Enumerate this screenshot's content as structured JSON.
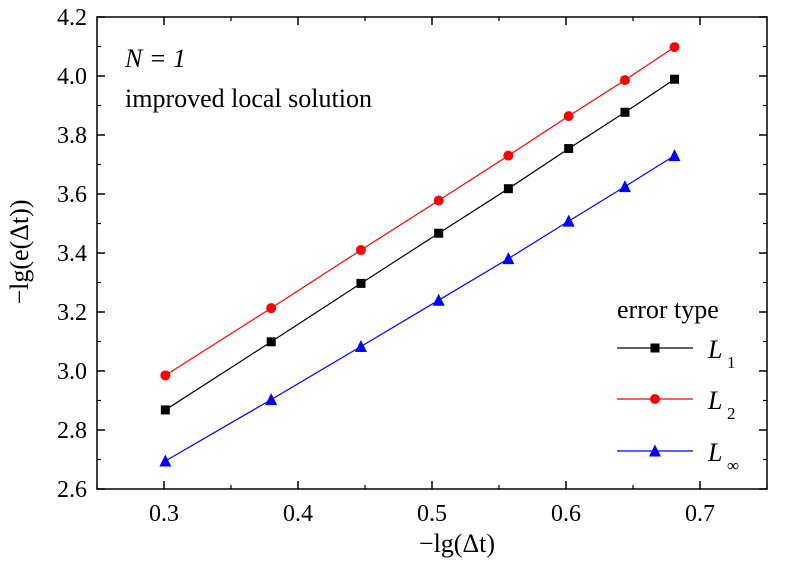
{
  "chart_data": {
    "type": "line",
    "title": "",
    "xlabel": "−lg(Δt)",
    "ylabel": "−lg(e(Δt))",
    "xlim": [
      0.25,
      0.75
    ],
    "ylim": [
      2.6,
      4.2
    ],
    "x_ticks": [
      "0.3",
      "0.4",
      "0.5",
      "0.6",
      "0.7"
    ],
    "x_tick_values": [
      0.3,
      0.4,
      0.5,
      0.6,
      0.7
    ],
    "y_ticks": [
      "2.6",
      "2.8",
      "3.0",
      "3.2",
      "3.4",
      "3.6",
      "3.8",
      "4.0",
      "4.2"
    ],
    "y_tick_values": [
      2.6,
      2.8,
      3.0,
      3.2,
      3.4,
      3.6,
      3.8,
      4.0,
      4.2
    ],
    "grid": false,
    "annotations": {
      "line1": "N = 1",
      "line2": "improved local solution"
    },
    "legend": {
      "title": "error type",
      "placement": "bottom-right"
    },
    "x": [
      0.301,
      0.38,
      0.447,
      0.505,
      0.557,
      0.602,
      0.644,
      0.681
    ],
    "series": [
      {
        "name": "L1",
        "label_main": "L",
        "label_sub": "1",
        "color": "#000000",
        "marker": "square",
        "values": [
          2.868,
          3.099,
          3.297,
          3.467,
          3.618,
          3.754,
          3.877,
          3.989
        ]
      },
      {
        "name": "L2",
        "label_main": "L",
        "label_sub": "2",
        "color": "#ff0000",
        "marker": "circle",
        "values": [
          2.985,
          3.213,
          3.41,
          3.578,
          3.73,
          3.864,
          3.986,
          4.098
        ]
      },
      {
        "name": "L∞",
        "label_main": "L",
        "label_sub": "∞",
        "color": "#0000ff",
        "marker": "triangle",
        "values": [
          2.695,
          2.903,
          3.083,
          3.24,
          3.381,
          3.508,
          3.625,
          3.73
        ]
      }
    ]
  }
}
